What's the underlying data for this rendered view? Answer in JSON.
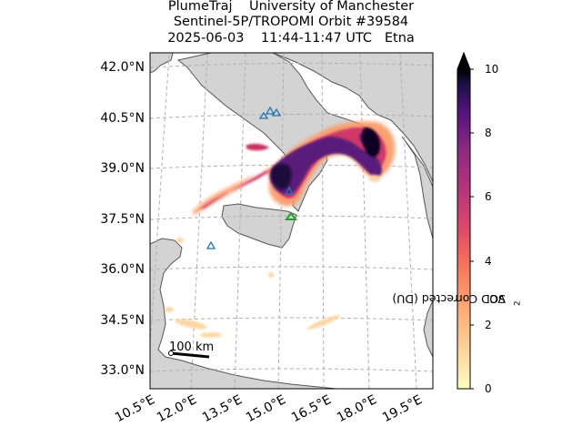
{
  "title": {
    "line1": "PlumeTraj    University of Manchester",
    "line2": "Sentinel-5P/TROPOMI Orbit #39584",
    "line3": "2025-06-03    11:44-11:47 UTC   Etna"
  },
  "map": {
    "lat_labels": [
      "42.0°N",
      "40.5°N",
      "39.0°N",
      "37.5°N",
      "36.0°N",
      "34.5°N",
      "33.0°N"
    ],
    "lon_labels": [
      "10.5°E",
      "12.0°E",
      "13.5°E",
      "15.0°E",
      "16.5°E",
      "18.0°E",
      "19.5°E"
    ],
    "land_color": "#d3d3d3",
    "sea_color": "#ffffff",
    "gridline_style": "dashed",
    "scale_bar_label": "100 km",
    "volcano_marker_colors": {
      "other": "#1f77b4",
      "target": "#2ca02c"
    }
  },
  "colorbar": {
    "label_main": "SO",
    "label_sub": "2",
    "label_rest": " VCD Corrected (DU)",
    "ticks": [
      "0",
      "2",
      "4",
      "6",
      "8",
      "10"
    ],
    "min": 0,
    "max": 10,
    "colormap": "magma_r",
    "extend": "max"
  }
}
